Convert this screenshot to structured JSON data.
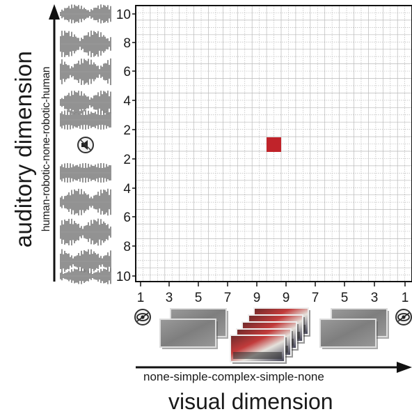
{
  "axes": {
    "y_title": "auditory dimension",
    "y_subtitle": "human-robotic-none-robotic-human",
    "y_ticks": [
      "10",
      "8",
      "6",
      "4",
      "2",
      "2",
      "4",
      "6",
      "8",
      "10"
    ],
    "x_title": "visual dimension",
    "x_subtitle": "none-simple-complex-simple-none",
    "x_ticks": [
      "1",
      "3",
      "5",
      "7",
      "9",
      "9",
      "7",
      "5",
      "3",
      "1"
    ]
  },
  "marker": {
    "x_cell": 10,
    "y_cell": 9,
    "color": "#c0232a"
  },
  "colors": {
    "grid": "#b9b9b9",
    "axis": "#111111",
    "thumb": "#8c8c8c"
  },
  "icons": [
    "waveform-icon",
    "speaker-muted-icon",
    "eye-icon",
    "image-thumbnail-icon"
  ]
}
